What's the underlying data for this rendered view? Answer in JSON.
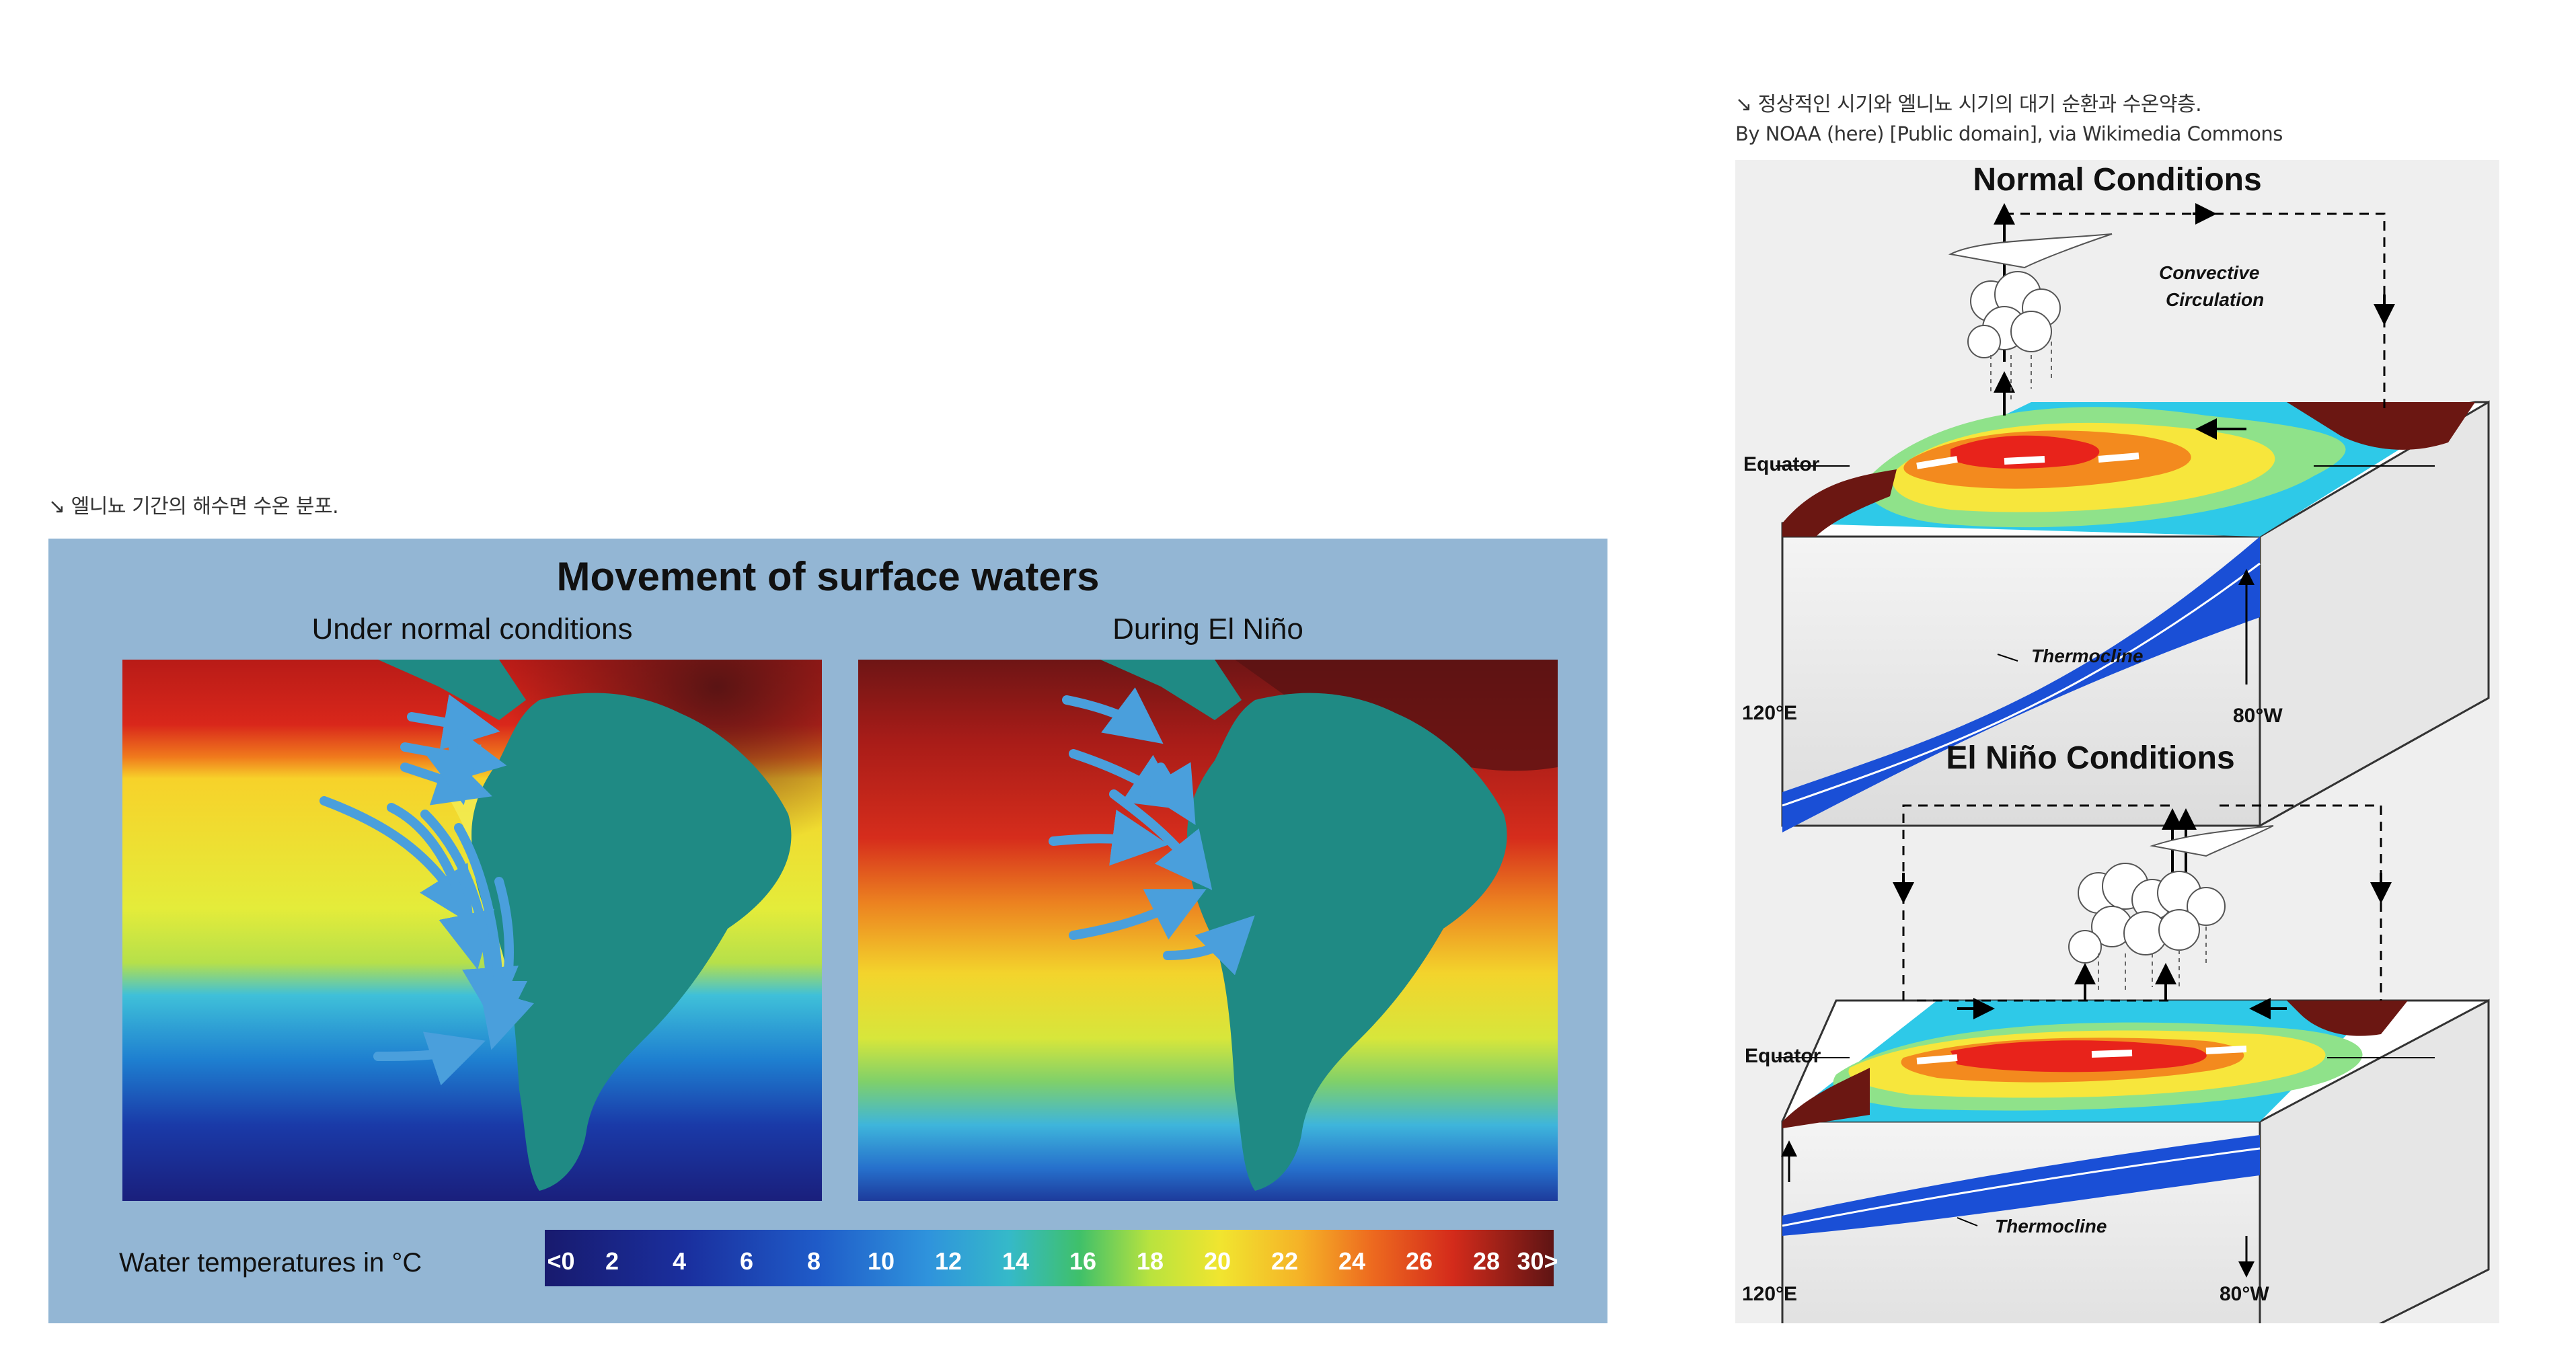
{
  "captions": {
    "left": "↘ 엘니뇨 기간의 해수면 수온 분포.",
    "right_line1": "↘ 정상적인 시기와 엘니뇨 시기의 대기 순환과 수온약층.",
    "right_line2": "By NOAA (here) [Public domain], via Wikimedia Commons"
  },
  "surface_waters": {
    "title": "Movement of surface waters",
    "panel_normal": "Under normal conditions",
    "panel_elnino": "During El Niño",
    "legend_label": "Water temperatures in °C",
    "legend_ticks": [
      "<0",
      "2",
      "4",
      "6",
      "8",
      "10",
      "12",
      "14",
      "16",
      "18",
      "20",
      "22",
      "24",
      "26",
      "28",
      "30>"
    ]
  },
  "normal_conditions": {
    "title": "Normal Conditions",
    "convective": "Convective",
    "circulation": "Circulation",
    "equator": "Equator",
    "thermocline": "Thermocline",
    "west": "120°E",
    "east": "80°W"
  },
  "elnino_conditions": {
    "title": "El Niño Conditions",
    "equator": "Equator",
    "thermocline": "Thermocline",
    "west": "120°E",
    "east": "80°W"
  },
  "colors": {
    "background_panel": "#93b6d4",
    "continent": "#1f8a84",
    "current_arrow": "#4a9fdc",
    "warm_pool": "#e8231b",
    "cold_water": "#1a4fd6"
  }
}
